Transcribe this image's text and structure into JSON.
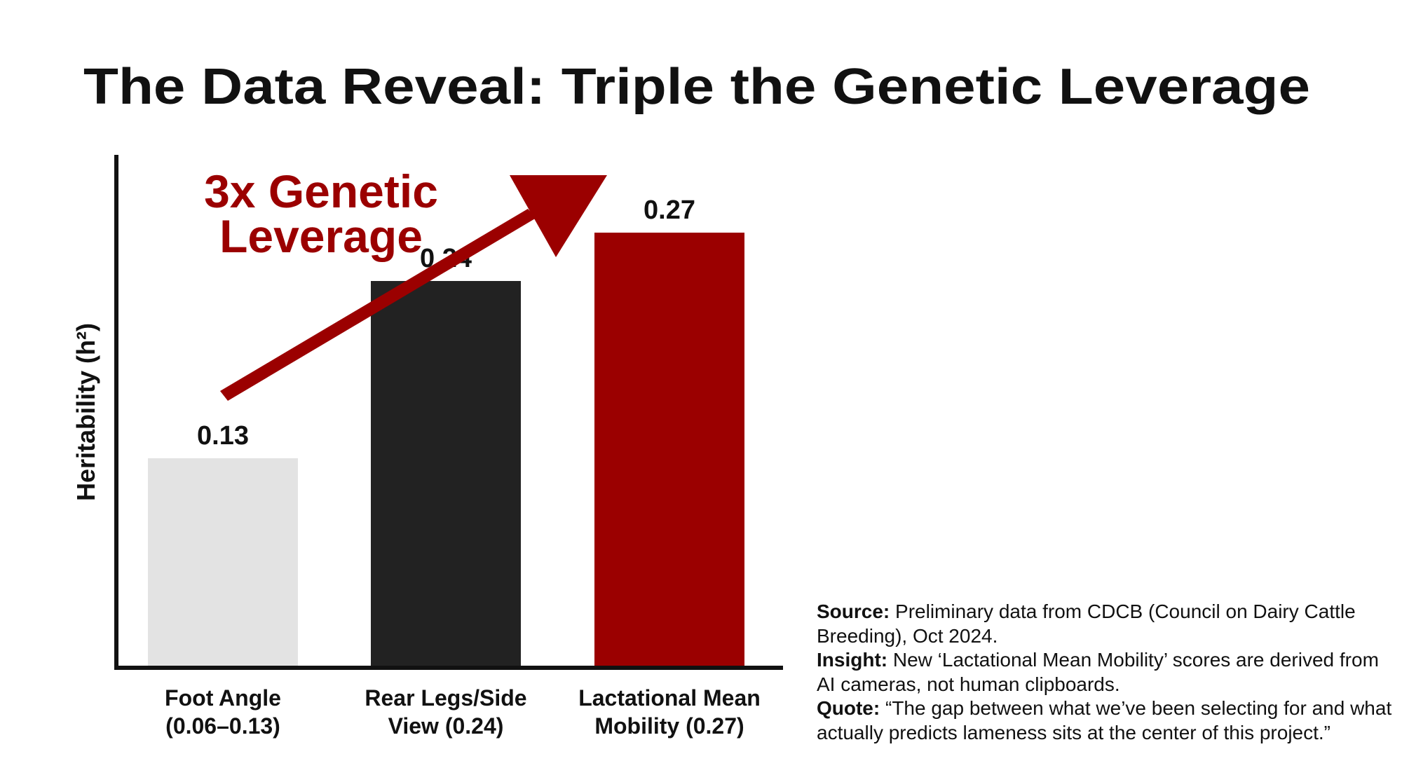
{
  "chart_data": {
    "type": "bar",
    "title": "The Data Reveal: Triple the Genetic Leverage",
    "xlabel": "",
    "ylabel": "Heritability (h²)",
    "ylim": [
      0,
      0.3
    ],
    "grid": false,
    "categories": [
      [
        "Foot Angle",
        "(0.06–0.13)"
      ],
      [
        "Rear Legs/Side",
        "View (0.24)"
      ],
      [
        "Lactational Mean",
        "Mobility (0.27)"
      ]
    ],
    "values": [
      0.13,
      0.24,
      0.27
    ],
    "value_labels": [
      "0.13",
      "0.24",
      "0.27"
    ],
    "bar_colors": [
      "#e3e3e3",
      "#222222",
      "#9b0000"
    ],
    "annotation": [
      "3x Genetic",
      "Leverage"
    ],
    "annotation_color": "#9b0000"
  },
  "notes": {
    "source_label": "Source:",
    "source_text": " Preliminary data from CDCB (Council on Dairy Cattle Breeding), Oct 2024.",
    "insight_label": "Insight:",
    "insight_text": " New ‘Lactational Mean Mobility’ scores are derived from AI cameras, not human clipboards.",
    "quote_label": "Quote:",
    "quote_text": " “The gap between what we’ve been selecting for and what actually predicts lameness sits at the center of this project.”"
  }
}
